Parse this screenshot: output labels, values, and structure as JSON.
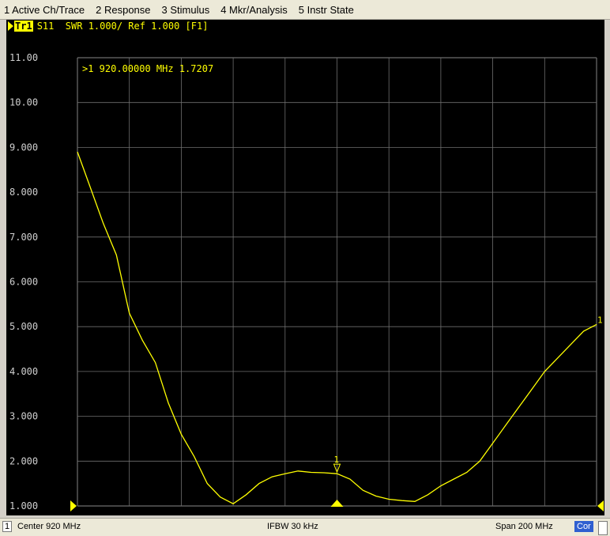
{
  "menu": {
    "items": [
      "1 Active Ch/Trace",
      "2 Response",
      "3 Stimulus",
      "4 Mkr/Analysis",
      "5 Instr State"
    ]
  },
  "trace": {
    "id": "Tr1",
    "header_text": "S11  SWR 1.000/ Ref 1.000 [F1]"
  },
  "marker": {
    "readout": ">1  920.00000 MHz  1.7207",
    "label": "1",
    "right_edge_label": "1"
  },
  "status": {
    "channel": "1",
    "center": "Center 920 MHz",
    "ifbw": "IFBW 30 kHz",
    "span": "Span 200 MHz",
    "cor": "Cor"
  },
  "colors": {
    "trace": "#ffff00",
    "grid": "#6e6e6e",
    "background": "#000000",
    "axis_text": "#cfcfcf"
  },
  "chart_data": {
    "type": "line",
    "title": "",
    "xlabel": "",
    "ylabel": "",
    "xlim": [
      820,
      1020
    ],
    "ylim": [
      1,
      11
    ],
    "grid": true,
    "y_tick_labels": [
      "11.00",
      "10.00",
      "9.000",
      "8.000",
      "7.000",
      "6.000",
      "5.000",
      "4.000",
      "3.000",
      "2.000",
      "1.000"
    ],
    "series": [
      {
        "x": [
          820,
          825,
          830,
          835,
          840,
          845,
          850,
          855,
          860,
          865,
          870,
          875,
          880,
          885,
          890,
          895,
          900,
          905,
          910,
          915,
          920,
          925,
          930,
          935,
          940,
          945,
          950,
          955,
          960,
          965,
          970,
          975,
          980,
          985,
          990,
          995,
          1000,
          1005,
          1010,
          1015,
          1020
        ],
        "values": [
          8.9,
          8.1,
          7.3,
          6.6,
          5.3,
          4.7,
          4.2,
          3.3,
          2.6,
          2.1,
          1.5,
          1.2,
          1.05,
          1.25,
          1.5,
          1.65,
          1.72,
          1.78,
          1.75,
          1.74,
          1.72,
          1.6,
          1.35,
          1.22,
          1.15,
          1.12,
          1.1,
          1.25,
          1.45,
          1.6,
          1.75,
          2.0,
          2.4,
          2.8,
          3.2,
          3.6,
          4.0,
          4.3,
          4.6,
          4.9,
          5.05
        ]
      }
    ],
    "marker": {
      "x": 920,
      "y": 1.7207
    }
  }
}
